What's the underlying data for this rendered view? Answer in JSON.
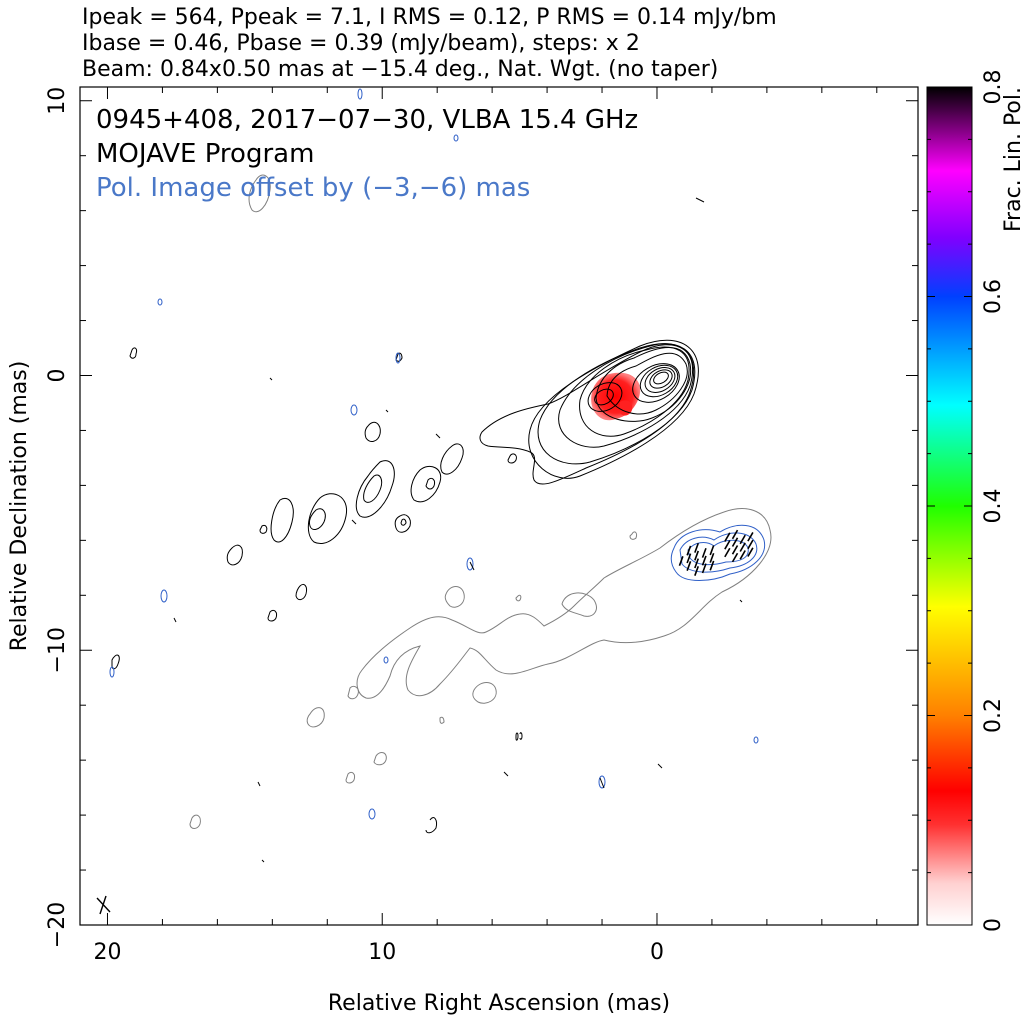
{
  "header": {
    "line1": "Ipeak = 564, Ppeak = 7.1, I RMS = 0.12, P RMS = 0.14 mJy/bm",
    "line2": "Ibase = 0.46, Pbase = 0.39 (mJy/beam), steps: x 2",
    "line3": "Beam: 0.84x0.50 mas at −15.4 deg., Nat. Wgt. (no taper)"
  },
  "annotations": {
    "source": "0945+408, 2017−07−30, VLBA 15.4 GHz",
    "program": "MOJAVE Program",
    "offset_note": "Pol. Image offset by (−3,−6) mas"
  },
  "colors": {
    "stokes_i_contour": "#000000",
    "pol_contour": "#3060c8",
    "offset_i_contour": "#808080",
    "evpa_vector": "#000000",
    "offset_text": "#4a78c8"
  },
  "chart_data": {
    "type": "heatmap",
    "description_kind": "radio map with contours and fractional polarization colormap",
    "xlabel": "Relative Right Ascension (mas)",
    "ylabel": "Relative Declination (mas)",
    "xlim": [
      21,
      -9.5
    ],
    "ylim": [
      -20,
      10.5
    ],
    "x_ticks": [
      20,
      10,
      0
    ],
    "x_tick_labels": [
      "20",
      "10",
      "0"
    ],
    "y_ticks": [
      10,
      0,
      -10,
      -20
    ],
    "y_tick_labels": [
      "10",
      "0",
      "−10",
      "−20"
    ],
    "colorbar": {
      "label": "Frac. Lin. Pol.",
      "range": [
        0,
        0.8
      ],
      "ticks": [
        0,
        0.2,
        0.4,
        0.6,
        0.8
      ],
      "tick_labels": [
        "0",
        "0.2",
        "0.4",
        "0.6",
        "0.8"
      ]
    },
    "core": {
      "x": 0.2,
      "y": 0.0
    },
    "jet_direction_deg": -62,
    "polarization_offset_mas": [
      -3,
      -6
    ],
    "peak_frac_pol_region": {
      "x": 2.0,
      "y": -0.5,
      "value": 0.1
    },
    "beam": {
      "major": 0.84,
      "minor": 0.5,
      "pa": -15.4
    }
  }
}
